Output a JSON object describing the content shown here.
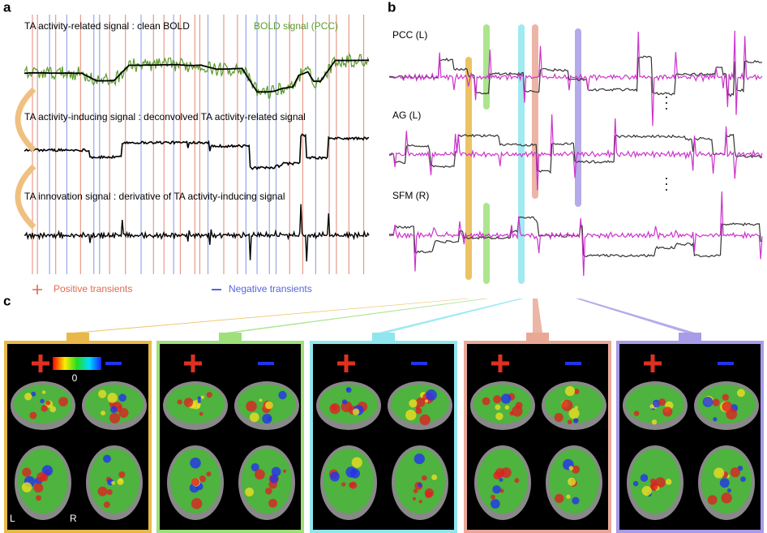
{
  "panel_labels": {
    "a": "a",
    "b": "b",
    "c": "c"
  },
  "panel_a": {
    "traces": [
      "TA activity-related signal : clean BOLD",
      "TA activity-inducing signal : deconvolved TA activity-related signal",
      "TA innovation signal : derivative of TA activity-inducing signal"
    ],
    "bold_label": "BOLD signal (PCC)",
    "legend": {
      "positive": "Positive transients",
      "negative": "Negative transients"
    }
  },
  "panel_b": {
    "regions": [
      "PCC (L)",
      "AG (L)",
      "SFM (R)"
    ]
  },
  "panel_c": {
    "colorbar_zero": "0",
    "left": "L",
    "right": "R"
  }
}
